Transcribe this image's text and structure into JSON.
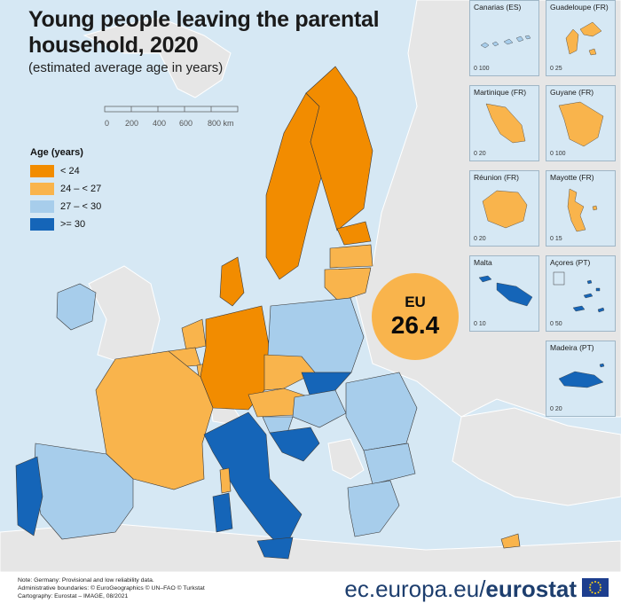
{
  "title_line1": "Young people leaving the parental",
  "title_line2": "household, 2020",
  "subtitle": "(estimated average age in years)",
  "scale": {
    "t0": "0",
    "t1": "200",
    "t2": "400",
    "t3": "600",
    "t4": "800 km"
  },
  "legend": {
    "title": "Age (years)",
    "items": [
      {
        "label": "< 24",
        "color": "#f28c00"
      },
      {
        "label": "24 – < 27",
        "color": "#f9b44c"
      },
      {
        "label": "27 – < 30",
        "color": "#a7cdeb"
      },
      {
        "label": ">= 30",
        "color": "#1565b8"
      }
    ]
  },
  "eu": {
    "label": "EU",
    "value": "26.4"
  },
  "colors": {
    "sea": "#d6e8f4",
    "non_eu_land": "#e6e6e6",
    "border": "#ffffff"
  },
  "insets": [
    {
      "label": "Canarias (ES)",
      "scale": "0  100"
    },
    {
      "label": "Guadeloupe (FR)",
      "scale": "0  25"
    },
    {
      "label": "Martinique (FR)",
      "scale": "0  20"
    },
    {
      "label": "Guyane (FR)",
      "scale": "0  100"
    },
    {
      "label": "Réunion (FR)",
      "scale": "0  20"
    },
    {
      "label": "Mayotte (FR)",
      "scale": "0  15"
    },
    {
      "label": "Malta",
      "scale": "0  10"
    },
    {
      "label": "Açores (PT)",
      "scale": "0  50"
    },
    {
      "label": "Madeira (PT)",
      "scale": "0  20"
    }
  ],
  "footer": {
    "note1": "Note: Germany: Provisional and low reliability data.",
    "note2": "Administrative boundaries: © EuroGeographics © UN–FAO © Turkstat",
    "note3": "Cartography: Eurostat – IMAGE, 08/2021",
    "brand_url": "ec.europa.eu/",
    "brand_name": "eurostat"
  }
}
